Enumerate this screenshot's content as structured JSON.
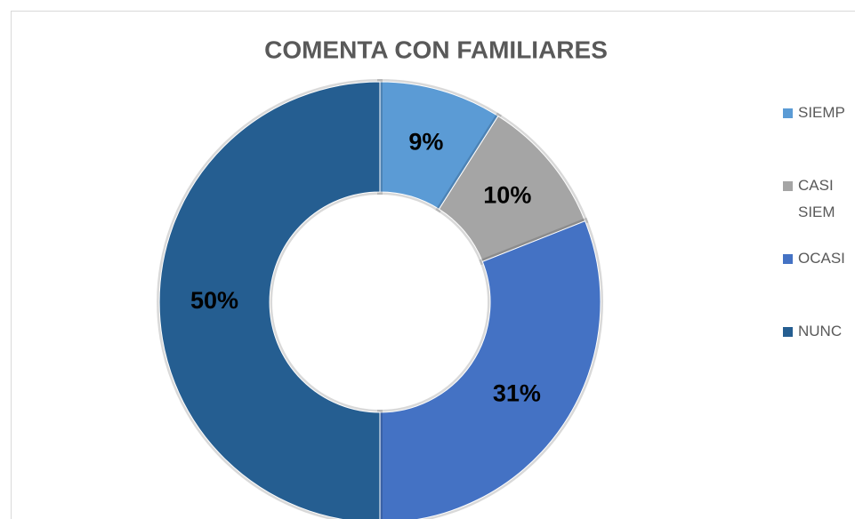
{
  "chart_data": {
    "type": "pie",
    "title": "COMENTA CON FAMILIARES",
    "categories": [
      "SIEMP",
      "CASI SIEM",
      "OCASI",
      "NUNC"
    ],
    "values": [
      9,
      10,
      31,
      50
    ],
    "value_labels": [
      "9%",
      "10%",
      "31%",
      "50%"
    ],
    "colors": [
      "#5b9bd5",
      "#a5a5a5",
      "#4472c4",
      "#255e91"
    ],
    "donut": true,
    "legend": "right"
  }
}
